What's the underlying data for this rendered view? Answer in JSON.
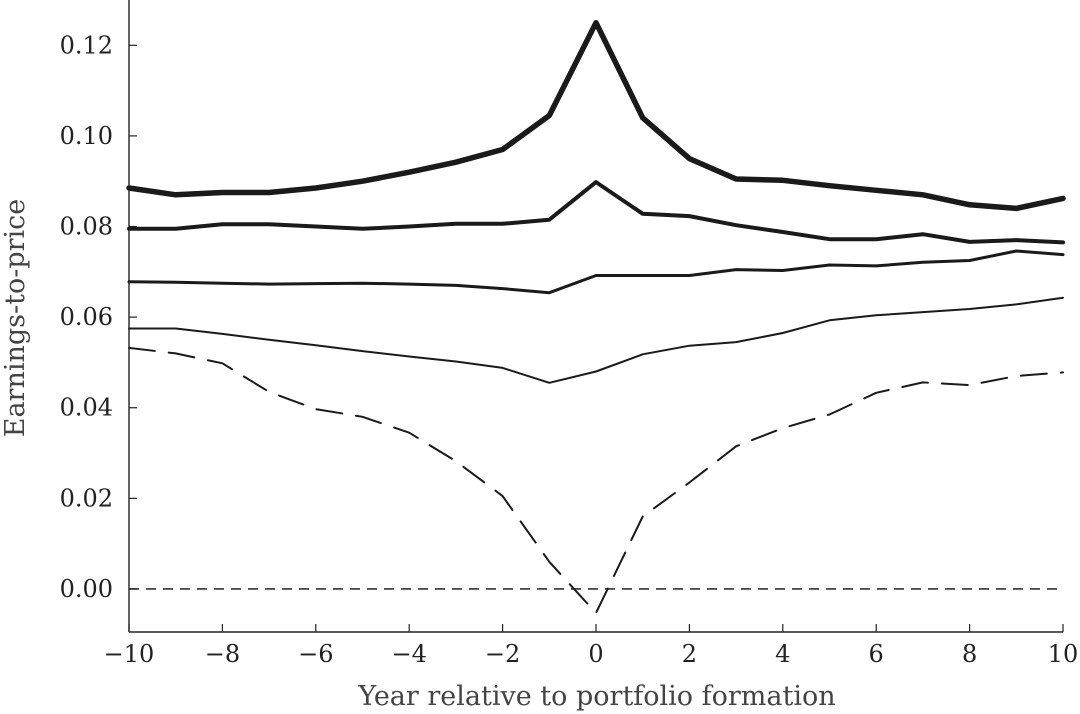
{
  "chart_data": {
    "type": "line",
    "title": "",
    "xlabel": "Year relative to portfolio formation",
    "ylabel": "Earnings-to-price",
    "xlim": [
      -10,
      10
    ],
    "ylim": [
      -0.0095,
      0.13
    ],
    "x_ticks": [
      -10,
      -8,
      -6,
      -4,
      -2,
      0,
      2,
      4,
      6,
      8,
      10
    ],
    "x_tick_labels": [
      "−10",
      "−8",
      "−6",
      "−4",
      "−2",
      "0",
      "2",
      "4",
      "6",
      "8",
      "10"
    ],
    "y_ticks": [
      0.0,
      0.02,
      0.04,
      0.06,
      0.08,
      0.1,
      0.12
    ],
    "y_tick_labels": [
      "0.00",
      "0.02",
      "0.04",
      "0.06",
      "0.08",
      "0.10",
      "0.12"
    ],
    "grid": false,
    "legend": "none",
    "reference_line": {
      "y": 0.0,
      "style": "dashed"
    },
    "x": [
      -10,
      -9,
      -8,
      -7,
      -6,
      -5,
      -4,
      -3,
      -2,
      -1,
      0,
      1,
      2,
      3,
      4,
      5,
      6,
      7,
      8,
      9,
      10
    ],
    "series": [
      {
        "style": "solid",
        "weight": 5.5,
        "values": [
          0.0885,
          0.087,
          0.0875,
          0.0875,
          0.0885,
          0.09,
          0.092,
          0.0942,
          0.097,
          0.1045,
          0.125,
          0.104,
          0.095,
          0.0905,
          0.0902,
          0.089,
          0.088,
          0.087,
          0.0848,
          0.084,
          0.0862
        ]
      },
      {
        "style": "solid",
        "weight": 4.0,
        "values": [
          0.0795,
          0.0795,
          0.0805,
          0.0805,
          0.08,
          0.0795,
          0.08,
          0.0806,
          0.0806,
          0.0815,
          0.0898,
          0.0828,
          0.0823,
          0.0803,
          0.0788,
          0.0772,
          0.0772,
          0.0783,
          0.0766,
          0.077,
          0.0765
        ]
      },
      {
        "style": "solid",
        "weight": 3.0,
        "values": [
          0.0678,
          0.0677,
          0.0675,
          0.0673,
          0.0674,
          0.0675,
          0.0673,
          0.067,
          0.0663,
          0.0654,
          0.0692,
          0.0692,
          0.0692,
          0.0705,
          0.0703,
          0.0715,
          0.0713,
          0.0721,
          0.0725,
          0.0746,
          0.0738
        ]
      },
      {
        "style": "solid",
        "weight": 2.0,
        "values": [
          0.0575,
          0.0575,
          0.0563,
          0.055,
          0.0538,
          0.0525,
          0.0513,
          0.0502,
          0.0488,
          0.0455,
          0.048,
          0.0518,
          0.0537,
          0.0545,
          0.0565,
          0.0593,
          0.0604,
          0.0611,
          0.0618,
          0.0628,
          0.0643
        ]
      },
      {
        "style": "dashed",
        "weight": 2.0,
        "values": [
          0.0532,
          0.052,
          0.0498,
          0.0435,
          0.0397,
          0.038,
          0.0345,
          0.0282,
          0.0205,
          0.006,
          -0.0053,
          0.016,
          0.0235,
          0.0315,
          0.0355,
          0.0385,
          0.0433,
          0.0456,
          0.045,
          0.047,
          0.0478
        ]
      }
    ]
  }
}
